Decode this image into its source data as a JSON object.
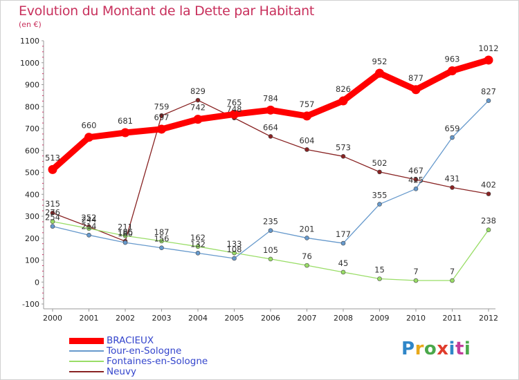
{
  "title": "Evolution du Montant de la Dette par Habitant",
  "subtitle": "(en €)",
  "logo": {
    "text": "Proxiti",
    "colors": [
      "#2f86c8",
      "#e8a81a",
      "#4aa84a",
      "#e03c2c",
      "#2f86c8",
      "#c23c9a",
      "#4aa84a"
    ]
  },
  "chart_data": {
    "type": "line",
    "title": "Evolution du Montant de la Dette par Habitant",
    "subtitle": "(en €)",
    "xlabel": "",
    "ylabel": "",
    "x": [
      "2000",
      "2001",
      "2002",
      "2003",
      "2004",
      "2005",
      "2006",
      "2007",
      "2008",
      "2009",
      "2010",
      "2011",
      "2012"
    ],
    "ylim": [
      -100,
      1100
    ],
    "yticks": [
      "-100",
      "0",
      "100",
      "200",
      "300",
      "400",
      "500",
      "600",
      "700",
      "800",
      "900",
      "1000",
      "1100"
    ],
    "grid": false,
    "legend_position": "bottom-left",
    "series": [
      {
        "name": "BRACIEUX",
        "color": "#ff0000",
        "values": [
          513,
          660,
          681,
          697,
          742,
          765,
          784,
          757,
          826,
          952,
          877,
          963,
          1012
        ],
        "labels": [
          "513",
          "660",
          "681",
          "697",
          "742",
          "765",
          "784",
          "757",
          "826",
          "952",
          "877",
          "963",
          "1012"
        ]
      },
      {
        "name": "Tour-en-Sologne",
        "color": "#6699cc",
        "values": [
          254,
          214,
          180,
          156,
          132,
          108,
          235,
          201,
          177,
          355,
          425,
          659,
          827
        ],
        "labels": [
          "254",
          "214",
          "180",
          "156",
          "132",
          "108",
          "235",
          "201",
          "177",
          "355",
          "425",
          "659",
          "827"
        ]
      },
      {
        "name": "Fontaines-en-Sologne",
        "color": "#99dd66",
        "values": [
          276,
          244,
          211,
          187,
          162,
          133,
          105,
          76,
          45,
          15,
          7,
          7,
          238
        ],
        "labels": [
          "276",
          "244",
          "211",
          "187",
          "162",
          "133",
          "105",
          "76",
          "45",
          "15",
          "7",
          "7",
          "238"
        ]
      },
      {
        "name": "Neuvy",
        "color": "#882222",
        "values": [
          315,
          252,
          186,
          759,
          829,
          748,
          664,
          604,
          573,
          502,
          467,
          431,
          402
        ],
        "labels": [
          "315",
          "252",
          "186",
          "759",
          "829",
          "748",
          "664",
          "604",
          "573",
          "502",
          "467",
          "431",
          "402"
        ]
      }
    ]
  }
}
